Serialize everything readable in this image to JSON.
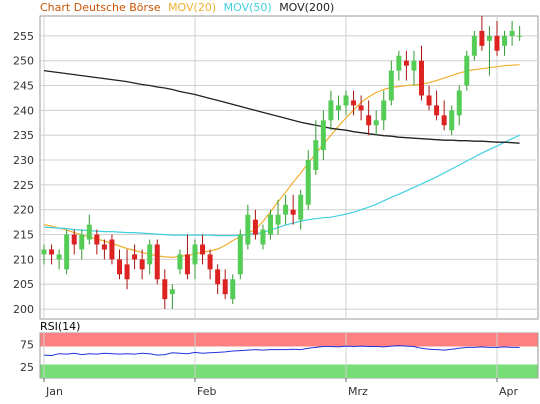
{
  "legend": {
    "title": "Chart Deutsche Börse",
    "mov20": "MOV(20)",
    "mov50": "MOV(50)",
    "mov200": "MOV(200)"
  },
  "rsi_label": "RSI(14)",
  "colors": {
    "up": "#55cc55",
    "down": "#dd2222",
    "mov20": "#f0b030",
    "mov50": "#40d0e0",
    "mov200": "#222222",
    "title": "#cc5500",
    "rsi_line": "#2233dd",
    "rsi_over": "#ff8080",
    "rsi_under": "#77dd77"
  },
  "chart_data": [
    {
      "type": "candlestick",
      "title": "Chart Deutsche Börse",
      "ylim": [
        198,
        259
      ],
      "y_ticks": [
        200,
        205,
        210,
        215,
        220,
        225,
        230,
        235,
        240,
        245,
        250,
        255
      ],
      "x_ticks": [
        "Jan",
        "Feb",
        "Mrz",
        "Apr"
      ],
      "x_tick_index": [
        0,
        20,
        40,
        60
      ],
      "grid": true,
      "candles": [
        [
          211,
          213,
          209,
          212
        ],
        [
          212,
          213,
          209,
          211
        ],
        [
          210,
          212,
          208,
          211
        ],
        [
          208,
          216,
          207,
          215
        ],
        [
          215,
          216,
          211,
          213
        ],
        [
          212,
          216,
          210,
          215
        ],
        [
          214,
          219,
          213,
          217
        ],
        [
          215,
          216,
          211,
          213
        ],
        [
          213,
          214,
          210,
          212
        ],
        [
          214,
          215,
          209,
          210
        ],
        [
          210,
          212,
          206,
          207
        ],
        [
          209,
          212,
          204,
          206
        ],
        [
          211,
          213,
          208,
          210
        ],
        [
          210,
          212,
          206,
          208
        ],
        [
          209,
          214,
          207,
          213
        ],
        [
          213,
          214,
          205,
          206
        ],
        [
          206,
          208,
          200,
          202
        ],
        [
          203,
          205,
          200,
          204
        ],
        [
          208,
          212,
          207,
          211
        ],
        [
          211,
          215,
          206,
          207
        ],
        [
          209,
          214,
          206,
          213
        ],
        [
          213,
          215,
          209,
          211
        ],
        [
          211,
          212,
          206,
          208
        ],
        [
          208,
          209,
          203,
          205
        ],
        [
          206,
          208,
          202,
          203
        ],
        [
          202,
          207,
          201,
          206
        ],
        [
          207,
          216,
          206,
          215
        ],
        [
          213,
          221,
          212,
          219
        ],
        [
          218,
          220,
          214,
          215
        ],
        [
          213,
          217,
          212,
          216
        ],
        [
          215,
          220,
          214,
          219
        ],
        [
          217,
          222,
          215,
          219
        ],
        [
          219,
          223,
          217,
          221
        ],
        [
          220,
          223,
          217,
          219
        ],
        [
          218,
          224,
          216,
          223
        ],
        [
          221,
          232,
          220,
          230
        ],
        [
          228,
          238,
          227,
          234
        ],
        [
          232,
          240,
          230,
          238
        ],
        [
          238,
          244,
          236,
          242
        ],
        [
          240,
          243,
          238,
          241
        ],
        [
          241,
          244,
          239,
          243
        ],
        [
          242,
          244,
          239,
          241
        ],
        [
          241,
          243,
          238,
          240
        ],
        [
          239,
          242,
          235,
          237
        ],
        [
          237,
          240,
          235,
          238
        ],
        [
          238,
          244,
          236,
          242
        ],
        [
          242,
          250,
          241,
          248
        ],
        [
          248,
          252,
          246,
          251
        ],
        [
          250,
          252,
          246,
          249
        ],
        [
          248,
          252,
          245,
          250
        ],
        [
          250,
          253,
          242,
          243
        ],
        [
          243,
          245,
          240,
          241
        ],
        [
          241,
          244,
          238,
          239
        ],
        [
          239,
          242,
          236,
          237
        ],
        [
          236,
          241,
          235,
          240
        ],
        [
          239,
          245,
          237,
          244
        ],
        [
          245,
          252,
          244,
          251
        ],
        [
          251,
          256,
          250,
          255
        ],
        [
          256,
          259,
          252,
          253
        ],
        [
          254,
          257,
          247,
          255
        ],
        [
          255,
          258,
          251,
          252
        ],
        [
          253,
          256,
          251,
          255
        ],
        [
          255,
          258,
          253,
          256
        ],
        [
          255,
          257,
          254,
          255
        ]
      ],
      "series": [
        {
          "name": "MOV(20)",
          "values": [
            217,
            216.7,
            216.3,
            215.9,
            215.4,
            214.9,
            214.5,
            214.1,
            213.7,
            213.2,
            212.7,
            212.2,
            211.8,
            211.4,
            211,
            210.7,
            210.5,
            210.4,
            210.6,
            210.8,
            211.1,
            211.4,
            211.7,
            212.1,
            212.8,
            213.8,
            214.6,
            215.3,
            216,
            217.6,
            219.6,
            221.6,
            223.5,
            225.5,
            227.4,
            229.4,
            231.3,
            233.2,
            235,
            236.8,
            238.5,
            240.1,
            241.6,
            242.7,
            243.6,
            244.2,
            244.6,
            244.8,
            245,
            245.1,
            245.3,
            245.6,
            246,
            246.5,
            247,
            247.5,
            247.9,
            248.2,
            248.4,
            248.6,
            248.8,
            249,
            249.1,
            249.2
          ]
        },
        {
          "name": "MOV(50)",
          "values": [
            216.5,
            216.4,
            216.3,
            216.2,
            216,
            215.9,
            215.8,
            215.7,
            215.6,
            215.6,
            215.5,
            215.4,
            215.4,
            215.3,
            215.2,
            215.1,
            215,
            214.9,
            214.9,
            214.9,
            214.9,
            214.9,
            214.9,
            214.8,
            214.8,
            214.8,
            214.9,
            215,
            215.2,
            215.4,
            215.9,
            216.4,
            216.9,
            217.3,
            217.7,
            218,
            218.2,
            218.4,
            218.5,
            218.8,
            219.1,
            219.5,
            220,
            220.5,
            221.1,
            221.8,
            222.5,
            223.1,
            223.8,
            224.5,
            225.2,
            225.9,
            226.6,
            227.4,
            228.2,
            229,
            229.8,
            230.6,
            231.4,
            232.1,
            232.8,
            233.6,
            234.3,
            235
          ]
        },
        {
          "name": "MOV(200)",
          "values": [
            248,
            247.8,
            247.6,
            247.4,
            247.2,
            247,
            246.8,
            246.6,
            246.4,
            246.2,
            246,
            245.8,
            245.5,
            245.2,
            245,
            244.7,
            244.5,
            244.2,
            243.8,
            243.5,
            243.2,
            242.8,
            242.4,
            242,
            241.6,
            241.2,
            240.8,
            240.4,
            240,
            239.6,
            239.2,
            238.8,
            238.4,
            238,
            237.6,
            237.3,
            237,
            236.7,
            236.4,
            236.2,
            236,
            235.7,
            235.5,
            235.3,
            235.1,
            234.9,
            234.8,
            234.6,
            234.5,
            234.4,
            234.3,
            234.2,
            234.1,
            234,
            234,
            233.9,
            233.9,
            233.8,
            233.8,
            233.7,
            233.6,
            233.6,
            233.5,
            233.4
          ]
        }
      ]
    },
    {
      "type": "line",
      "title": "RSI(14)",
      "ylim": [
        0,
        100
      ],
      "y_ticks": [
        25,
        75
      ],
      "zones": [
        [
          70,
          100
        ],
        [
          0,
          30
        ]
      ],
      "series": [
        {
          "name": "RSI(14)",
          "values": [
            51,
            50,
            54,
            53,
            55,
            52,
            54,
            53,
            55,
            54,
            53,
            54,
            53,
            55,
            54,
            51,
            52,
            56,
            55,
            54,
            57,
            55,
            56,
            57,
            58,
            60,
            61,
            62,
            63,
            62,
            63,
            63,
            63,
            64,
            63,
            66,
            68,
            70,
            70,
            69,
            71,
            70,
            71,
            70,
            70,
            69,
            71,
            72,
            71,
            70,
            66,
            64,
            63,
            62,
            64,
            66,
            68,
            68,
            69,
            68,
            68,
            69,
            68,
            68
          ]
        }
      ]
    }
  ]
}
